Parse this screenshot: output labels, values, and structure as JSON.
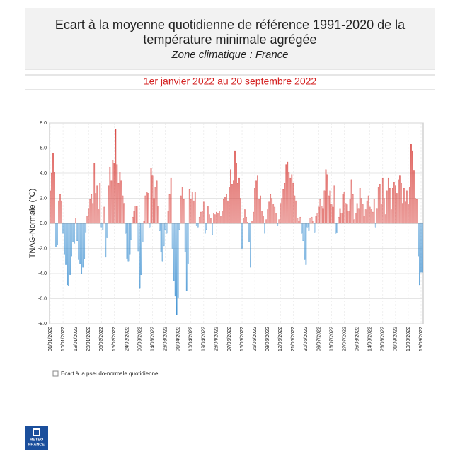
{
  "header": {
    "title_lines": [
      "Ecart à la moyenne quotidienne de référence 1991-2020 de la",
      "température minimale  agrégée"
    ],
    "subtitle": "Zone climatique : France",
    "period": "1er janvier 2022 au 20 septembre 2022"
  },
  "logo": {
    "lines": [
      "METEO",
      "FRANCE"
    ]
  },
  "chart_data": {
    "type": "bar",
    "y_label": "TNAG-Normale (°C)",
    "categories": [
      "01/01/2022",
      null,
      null,
      null,
      null,
      null,
      null,
      null,
      null,
      "10/01/2022",
      null,
      null,
      null,
      null,
      null,
      null,
      null,
      null,
      "19/01/2022",
      null,
      null,
      null,
      null,
      null,
      null,
      null,
      null,
      "28/01/2022",
      null,
      null,
      null,
      null,
      null,
      null,
      null,
      null,
      "06/02/2022",
      null,
      null,
      null,
      null,
      null,
      null,
      null,
      null,
      "15/02/2022",
      null,
      null,
      null,
      null,
      null,
      null,
      null,
      null,
      "24/02/2022",
      null,
      null,
      null,
      null,
      null,
      null,
      null,
      null,
      "05/03/2022",
      null,
      null,
      null,
      null,
      null,
      null,
      null,
      null,
      "14/03/2022",
      null,
      null,
      null,
      null,
      null,
      null,
      null,
      null,
      "23/03/2022",
      null,
      null,
      null,
      null,
      null,
      null,
      null,
      null,
      "01/04/2022",
      null,
      null,
      null,
      null,
      null,
      null,
      null,
      null,
      "10/04/2022",
      null,
      null,
      null,
      null,
      null,
      null,
      null,
      null,
      "19/04/2022",
      null,
      null,
      null,
      null,
      null,
      null,
      null,
      null,
      "28/04/2022",
      null,
      null,
      null,
      null,
      null,
      null,
      null,
      null,
      "07/05/2022",
      null,
      null,
      null,
      null,
      null,
      null,
      null,
      null,
      "16/05/2022",
      null,
      null,
      null,
      null,
      null,
      null,
      null,
      null,
      "25/05/2022",
      null,
      null,
      null,
      null,
      null,
      null,
      null,
      null,
      "03/06/2022",
      null,
      null,
      null,
      null,
      null,
      null,
      null,
      null,
      "12/06/2022",
      null,
      null,
      null,
      null,
      null,
      null,
      null,
      null,
      "21/06/2022",
      null,
      null,
      null,
      null,
      null,
      null,
      null,
      null,
      "30/06/2022",
      null,
      null,
      null,
      null,
      null,
      null,
      null,
      null,
      "09/07/2022",
      null,
      null,
      null,
      null,
      null,
      null,
      null,
      null,
      "18/07/2022",
      null,
      null,
      null,
      null,
      null,
      null,
      null,
      null,
      "27/07/2022",
      null,
      null,
      null,
      null,
      null,
      null,
      null,
      null,
      "05/08/2022",
      null,
      null,
      null,
      null,
      null,
      null,
      null,
      null,
      "14/08/2022",
      null,
      null,
      null,
      null,
      null,
      null,
      null,
      null,
      "23/08/2022",
      null,
      null,
      null,
      null,
      null,
      null,
      null,
      null,
      "01/09/2022",
      null,
      null,
      null,
      null,
      null,
      null,
      null,
      null,
      "10/09/2022",
      null,
      null,
      null,
      null,
      null,
      null,
      null,
      null,
      "19/09/2022",
      null
    ],
    "series": [
      {
        "name": "Ecart à la pseudo-normale quotidienne",
        "color": "#d9443f",
        "negative_color": "#3b8fd1",
        "values": [
          2.6,
          4.0,
          5.6,
          4.1,
          -1.9,
          -1.7,
          1.8,
          2.3,
          1.8,
          -0.8,
          -2.5,
          -3.3,
          -4.9,
          -5.0,
          -4.1,
          -2.6,
          -1.5,
          -1.6,
          0.4,
          -1.4,
          -2.9,
          -3.2,
          -4.0,
          -3.5,
          -2.8,
          -0.7,
          0.6,
          1.2,
          1.9,
          2.3,
          1.6,
          4.8,
          2.4,
          3.0,
          1.1,
          3.2,
          -0.3,
          -0.5,
          1.3,
          -2.7,
          -1.1,
          3.0,
          4.5,
          3.4,
          5.0,
          4.8,
          7.5,
          4.7,
          3.2,
          4.1,
          3.4,
          2.2,
          1.6,
          -0.8,
          -2.8,
          -3.0,
          -2.5,
          -1.3,
          0.5,
          1.0,
          1.4,
          1.4,
          -2.2,
          -5.2,
          -4.1,
          -1.5,
          0.2,
          2.2,
          2.5,
          2.4,
          -0.3,
          4.4,
          3.8,
          2.0,
          2.9,
          3.4,
          1.4,
          -0.6,
          -2.3,
          -3.0,
          -1.8,
          -0.5,
          -0.8,
          1.0,
          2.3,
          3.6,
          -2.0,
          -4.6,
          -5.8,
          -7.3,
          -5.9,
          -0.5,
          2.2,
          2.9,
          1.9,
          -2.3,
          -5.4,
          -3.2,
          2.7,
          1.9,
          2.5,
          1.8,
          2.5,
          -0.2,
          -0.3,
          0.5,
          0.9,
          1.0,
          1.7,
          -0.8,
          -0.5,
          1.4,
          0.7,
          0.4,
          -0.9,
          0.8,
          0.7,
          0.9,
          0.8,
          1.0,
          0.6,
          1.0,
          1.9,
          2.1,
          2.3,
          1.8,
          2.9,
          4.3,
          3.1,
          3.4,
          5.8,
          4.8,
          3.2,
          3.6,
          2.0,
          -2.0,
          0.4,
          1.1,
          0.5,
          0.1,
          -1.5,
          -3.5,
          0.2,
          0.9,
          2.8,
          3.4,
          3.8,
          1.9,
          2.2,
          1.0,
          0.6,
          -0.8,
          0.3,
          1.1,
          1.7,
          2.3,
          2.0,
          1.5,
          1.3,
          0.8,
          -0.2,
          0.3,
          1.6,
          2.0,
          2.7,
          3.2,
          4.7,
          4.9,
          4.1,
          3.6,
          3.9,
          3.2,
          2.2,
          1.8,
          0.4,
          0.2,
          0.5,
          -0.8,
          -1.4,
          -2.9,
          -3.3,
          -0.3,
          -0.6,
          0.4,
          0.5,
          0.2,
          -0.7,
          0.6,
          0.8,
          1.3,
          1.9,
          1.4,
          1.2,
          2.6,
          4.3,
          3.9,
          2.2,
          2.6,
          1.5,
          1.3,
          3.0,
          -0.8,
          -0.7,
          0.5,
          1.2,
          0.8,
          2.3,
          2.5,
          1.6,
          1.5,
          1.0,
          1.9,
          3.5,
          2.3,
          0.3,
          0.8,
          1.6,
          1.2,
          2.8,
          2.0,
          1.5,
          0.6,
          1.1,
          1.8,
          2.2,
          1.3,
          1.1,
          0.9,
          1.9,
          -0.3,
          1.2,
          2.9,
          3.1,
          1.5,
          3.6,
          2.0,
          0.7,
          2.6,
          3.6,
          2.8,
          1.1,
          2.8,
          3.3,
          3.0,
          2.4,
          3.5,
          3.8,
          3.2,
          1.6,
          2.8,
          1.7,
          2.6,
          1.5,
          2.9,
          6.3,
          5.8,
          4.2,
          2.0,
          1.9,
          -2.6,
          -4.9,
          -3.9,
          -3.9
        ]
      }
    ],
    "ylim": [
      -8,
      8
    ],
    "yticks": [
      {
        "value": -8,
        "label": "-8.0"
      },
      {
        "value": -6,
        "label": "-6.0"
      },
      {
        "value": -4,
        "label": "-4.0"
      },
      {
        "value": -2,
        "label": "-2.0"
      },
      {
        "value": 0,
        "label": "0.0"
      },
      {
        "value": 2,
        "label": "2.0"
      },
      {
        "value": 4,
        "label": "4.0"
      },
      {
        "value": 6,
        "label": "6.0"
      },
      {
        "value": 8,
        "label": "8.0"
      }
    ],
    "grid": true
  }
}
